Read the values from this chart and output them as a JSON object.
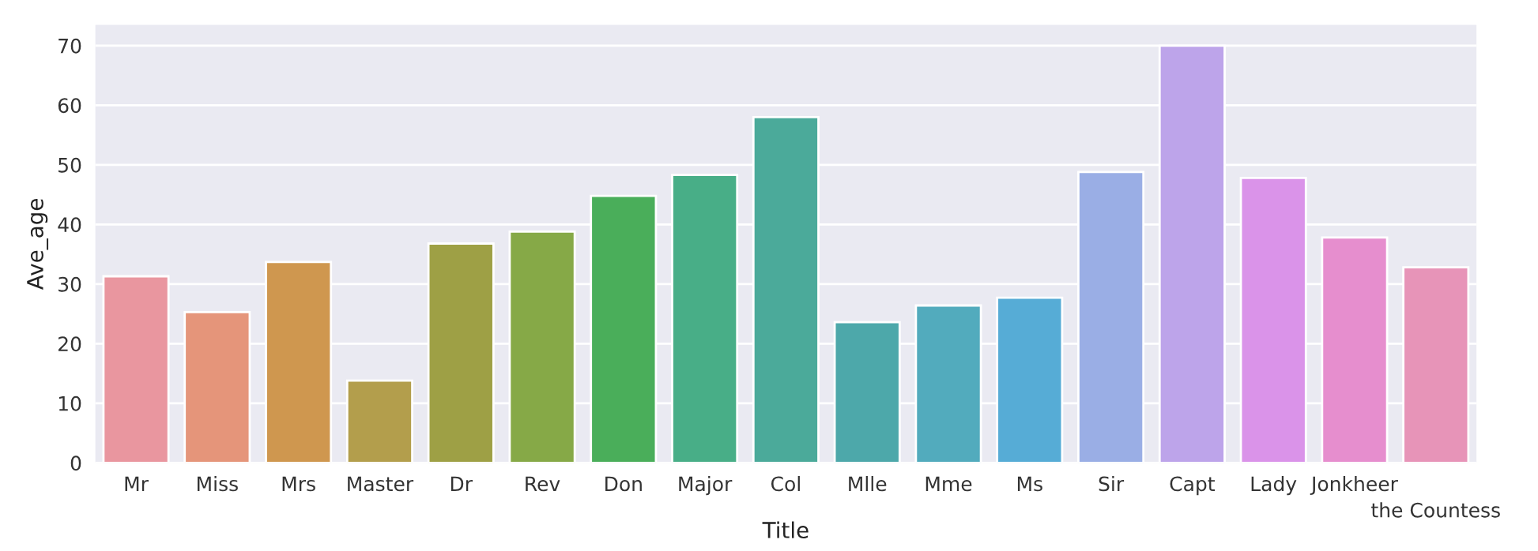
{
  "chart_data": {
    "type": "bar",
    "xlabel": "Title",
    "ylabel": "Ave_age",
    "categories": [
      "Mr",
      "Miss",
      "Mrs",
      "Master",
      "Dr",
      "Rev",
      "Don",
      "Major",
      "Col",
      "Mlle",
      "Mme",
      "Ms",
      "Sir",
      "Capt",
      "Lady",
      "Jonkheer",
      "the Countess"
    ],
    "values": [
      31.3,
      25.3,
      33.7,
      13.8,
      36.8,
      38.8,
      44.8,
      48.3,
      58,
      23.6,
      26.4,
      27.7,
      48.8,
      70,
      47.8,
      37.8,
      32.8
    ],
    "colors": [
      "#e9969f",
      "#e5957a",
      "#cf974f",
      "#b39e4c",
      "#9ea045",
      "#86a947",
      "#4aae5a",
      "#48ae87",
      "#4baa9a",
      "#4da8aa",
      "#52abbd",
      "#56acd6",
      "#9aaee5",
      "#bda4ea",
      "#da93e9",
      "#e68ece",
      "#e794b8"
    ],
    "ylim": [
      0,
      73.5
    ],
    "yticks": [
      0,
      10,
      20,
      30,
      40,
      50,
      60,
      70
    ],
    "grid": "y"
  }
}
